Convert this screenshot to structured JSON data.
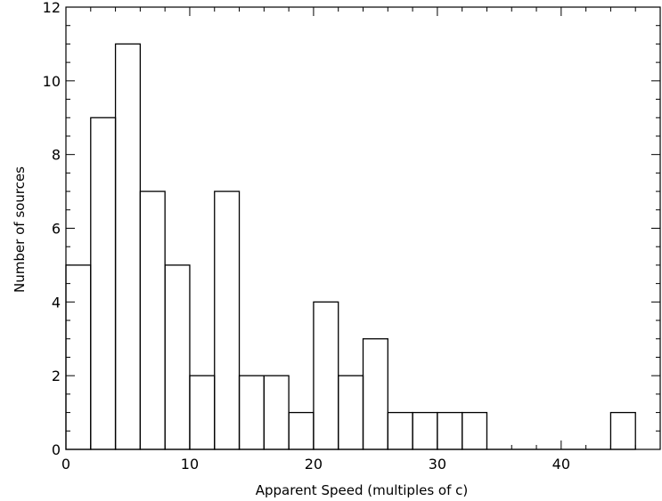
{
  "chart_data": {
    "type": "bar",
    "title": "",
    "xlabel": "Apparent Speed (multiples of c)",
    "ylabel": "Number of sources",
    "xlim": [
      0,
      48
    ],
    "ylim": [
      0,
      12
    ],
    "grid": false,
    "bin_width": 2,
    "bin_edges": [
      0,
      2,
      4,
      6,
      8,
      10,
      12,
      14,
      16,
      18,
      20,
      22,
      24,
      26,
      28,
      30,
      32,
      34,
      36,
      38,
      40,
      42,
      44,
      46
    ],
    "values": [
      5,
      9,
      11,
      7,
      5,
      2,
      7,
      2,
      2,
      1,
      4,
      2,
      3,
      1,
      1,
      1,
      1,
      0,
      0,
      0,
      0,
      0,
      1
    ],
    "x_ticks": [
      0,
      10,
      20,
      30,
      40
    ],
    "x_tick_labels": [
      "0",
      "10",
      "20",
      "30",
      "40"
    ],
    "y_ticks": [
      0,
      2,
      4,
      6,
      8,
      10,
      12
    ],
    "y_tick_labels": [
      "0",
      "2",
      "4",
      "6",
      "8",
      "10",
      "12"
    ]
  }
}
